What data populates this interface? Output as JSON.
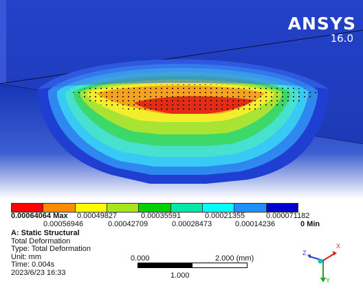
{
  "app": {
    "brand": "ANSYS",
    "version": "16.0"
  },
  "legend": {
    "colors": [
      "#ff0000",
      "#ff8c00",
      "#ffff00",
      "#a6e61a",
      "#00d200",
      "#00e8a8",
      "#00ffff",
      "#1e90ff",
      "#0000cd"
    ],
    "row1": [
      {
        "value": "0.00064064 Max",
        "bold": true
      },
      {
        "value": "0.00049827"
      },
      {
        "value": "0.00035591"
      },
      {
        "value": "0.00021355"
      },
      {
        "value": "0.000071182"
      }
    ],
    "row2": [
      {
        "value": "0.00056946"
      },
      {
        "value": "0.00042709"
      },
      {
        "value": "0.00028473"
      },
      {
        "value": "0.00014236"
      },
      {
        "value": "0 Min",
        "bold": true
      }
    ]
  },
  "info": {
    "title": "A: Static Structural",
    "result_name": "Total Deformation",
    "type": "Type: Total Deformation",
    "unit": "Unit: mm",
    "time": "Time: 0.004s",
    "date": "2023/6/23 16:33"
  },
  "scale": {
    "left": "0.000",
    "right": "2.000 (mm)",
    "mid": "1.000"
  },
  "triad": {
    "x": "X",
    "y": "Y",
    "z": "Z"
  }
}
